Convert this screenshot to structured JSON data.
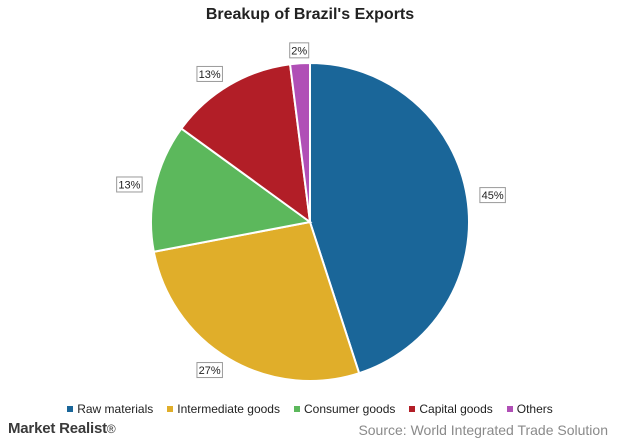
{
  "chart_data": {
    "type": "pie",
    "title": "Breakup of Brazil's Exports",
    "categories": [
      "Raw materials",
      "Intermediate goods",
      "Consumer goods",
      "Capital goods",
      "Others"
    ],
    "values": [
      45,
      27,
      13,
      13,
      2
    ],
    "labels": [
      "45%",
      "27%",
      "13%",
      "13%",
      "2%"
    ],
    "colors": [
      "#1a6699",
      "#e0ae2a",
      "#5cb85c",
      "#b21e27",
      "#b04fb6"
    ],
    "legend_position": "bottom",
    "start_angle": "top, clockwise"
  },
  "branding": {
    "logo_text": "Market Realist",
    "logo_mark": "®"
  },
  "source": "Source: World Integrated Trade Solution"
}
